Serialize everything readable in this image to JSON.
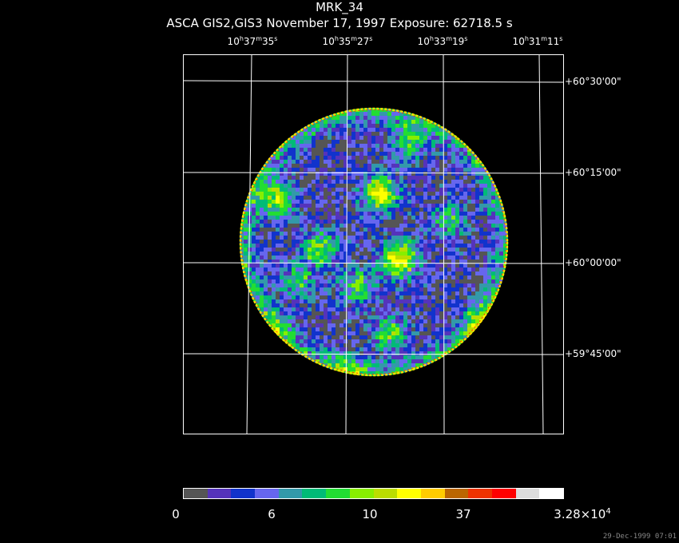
{
  "title": "MRK_34",
  "subtitle": "ASCA GIS2,GIS3 November 17, 1997 Exposure: 62718.5 s",
  "ra_ticks": [
    {
      "h": "10",
      "m": "37",
      "s": "35"
    },
    {
      "h": "10",
      "m": "35",
      "s": "27"
    },
    {
      "h": "10",
      "m": "33",
      "s": "19"
    },
    {
      "h": "10",
      "m": "31",
      "s": "11"
    }
  ],
  "dec_ticks": [
    "+60°30'00\"",
    "+60°15'00\"",
    "+60°00'00\"",
    "+59°45'00\""
  ],
  "colorbar": {
    "colors": [
      "#555555",
      "#5533bb",
      "#1133cc",
      "#6666ee",
      "#3399aa",
      "#00bb77",
      "#22dd33",
      "#88ee00",
      "#bbdd00",
      "#ffff00",
      "#ffcc00",
      "#bb6600",
      "#ee3300",
      "#ff0000",
      "#dddddd",
      "#ffffff"
    ],
    "labels": [
      "0",
      "6",
      "10",
      "37"
    ],
    "max_label_mantissa": "3.28×10",
    "max_label_exp": "4"
  },
  "timestamp": "29-Dec-1999 07:01"
}
